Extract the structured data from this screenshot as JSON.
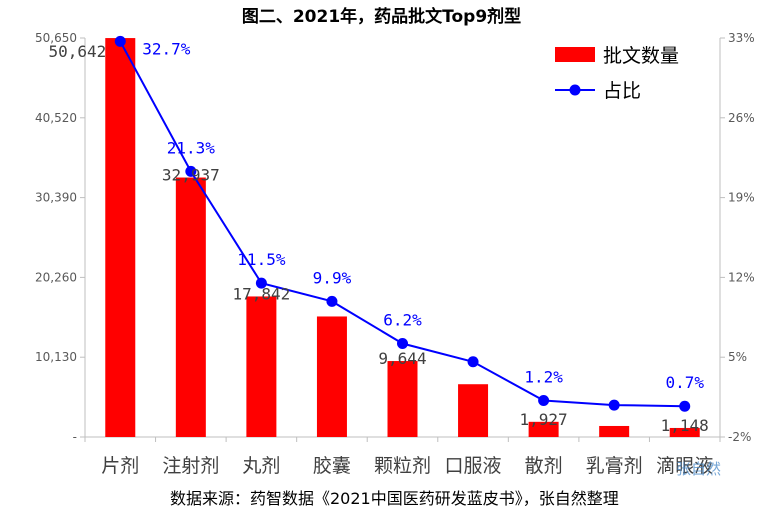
{
  "chart_data": {
    "type": "bar",
    "title": "图二、2021年，药品批文Top9剂型",
    "categories": [
      "片剂",
      "注射剂",
      "丸剂",
      "胶囊",
      "颗粒剂",
      "口服液",
      "散剂",
      "乳膏剂",
      "滴眼液"
    ],
    "series": [
      {
        "name": "批文数量",
        "type": "bar",
        "axis": "left",
        "color": "#ff0000",
        "values": [
          50642,
          32937,
          17842,
          15300,
          9644,
          6700,
          1927,
          1400,
          1148
        ],
        "labels": [
          "50,642",
          "32,937",
          "17,842",
          "",
          "9,644",
          "",
          "1,927",
          "",
          "1,148"
        ]
      },
      {
        "name": "占比",
        "type": "line",
        "axis": "right",
        "color": "#0000ff",
        "values": [
          32.7,
          21.3,
          11.5,
          9.9,
          6.2,
          4.6,
          1.2,
          0.8,
          0.7
        ],
        "labels": [
          "32.7%",
          "21.3%",
          "11.5%",
          "9.9%",
          "6.2%",
          "",
          "1.2%",
          "",
          "0.7%"
        ]
      }
    ],
    "y_left": {
      "range": [
        0,
        50650
      ],
      "ticks": [
        0,
        10130,
        20260,
        30390,
        40520,
        50650
      ],
      "tick_labels": [
        "-",
        "10,130",
        "20,260",
        "30,390",
        "40,520",
        "50,650"
      ]
    },
    "y_right": {
      "range": [
        -2,
        33
      ],
      "ticks": [
        -2,
        5,
        12,
        19,
        26,
        33
      ],
      "tick_labels": [
        "-2%",
        "5%",
        "12%",
        "19%",
        "26%",
        "33%"
      ]
    },
    "legend_position": "top-right",
    "grid": false
  },
  "footer": {
    "source": "数据来源：药智数据《2021中国医药研发蓝皮书》，张自然整理",
    "watermark": "张自然"
  }
}
